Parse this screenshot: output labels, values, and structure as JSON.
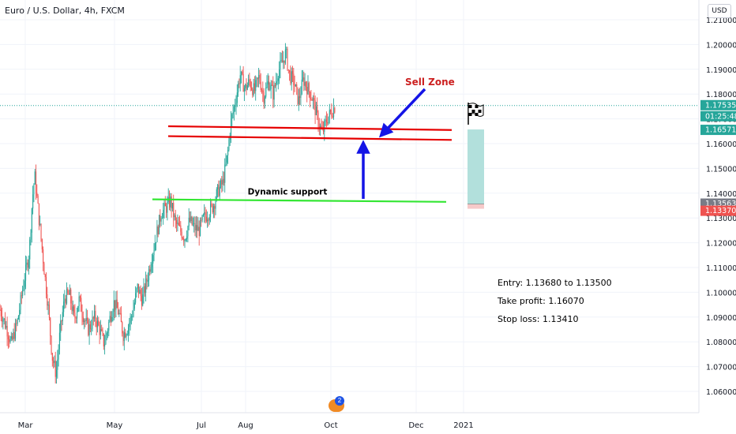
{
  "header": {
    "title": "Euro / U.S. Dollar, 4h, FXCM",
    "currency": "USD"
  },
  "annotations": {
    "sell_zone": "Sell Zone",
    "dynamic_support": "Dynamic support",
    "entry": "Entry: 1.13680 to 1.13500",
    "take_profit": "Take profit: 1.16070",
    "stop_loss": "Stop loss: 1.13410"
  },
  "price_tags": {
    "last": "1.17535",
    "countdown": "01:25:48",
    "target": "1.16571",
    "entry": "1.13563",
    "stop": "1.13370"
  },
  "event_badge": "2",
  "icons": [
    "checkered-flag-icon",
    "arrow-icon",
    "earnings-event-icon"
  ],
  "colors": {
    "up_candle": "#26a69a",
    "down_candle": "#ef5350",
    "resistance_line": "#e60000",
    "support_line": "#33e633",
    "arrow": "#1414e6",
    "sell_zone_text": "#cc1f1f",
    "target_box": "#b2e0dc",
    "last_price_tag": "#26a69a",
    "entry_tag": "#787b86",
    "stop_tag": "#ef5350"
  },
  "chart_data": {
    "type": "candlestick",
    "title": "Euro / U.S. Dollar, 4h, FXCM",
    "ylabel": "USD",
    "ylim": [
      1.055,
      1.215
    ],
    "yticks": [
      "1.21000",
      "1.20000",
      "1.19000",
      "1.18000",
      "1.17000",
      "1.16000",
      "1.15000",
      "1.14000",
      "1.13000",
      "1.12000",
      "1.11000",
      "1.10000",
      "1.09000",
      "1.08000",
      "1.07000",
      "1.06000"
    ],
    "xticks": [
      "Mar",
      "May",
      "Jul",
      "Aug",
      "Oct",
      "Dec",
      "2021"
    ],
    "price_path": [
      [
        0,
        1.093
      ],
      [
        9,
        1.085
      ],
      [
        14,
        1.079
      ],
      [
        22,
        1.088
      ],
      [
        30,
        1.104
      ],
      [
        37,
        1.116
      ],
      [
        41,
        1.138
      ],
      [
        44,
        1.147
      ],
      [
        49,
        1.131
      ],
      [
        55,
        1.112
      ],
      [
        61,
        1.094
      ],
      [
        66,
        1.074
      ],
      [
        71,
        1.067
      ],
      [
        76,
        1.084
      ],
      [
        82,
        1.098
      ],
      [
        88,
        1.099
      ],
      [
        94,
        1.089
      ],
      [
        100,
        1.097
      ],
      [
        106,
        1.09
      ],
      [
        112,
        1.085
      ],
      [
        120,
        1.09
      ],
      [
        126,
        1.085
      ],
      [
        132,
        1.079
      ],
      [
        138,
        1.088
      ],
      [
        144,
        1.096
      ],
      [
        150,
        1.092
      ],
      [
        156,
        1.083
      ],
      [
        162,
        1.086
      ],
      [
        168,
        1.092
      ],
      [
        174,
        1.102
      ],
      [
        180,
        1.097
      ],
      [
        186,
        1.105
      ],
      [
        192,
        1.114
      ],
      [
        198,
        1.123
      ],
      [
        204,
        1.132
      ],
      [
        210,
        1.134
      ],
      [
        216,
        1.137
      ],
      [
        222,
        1.128
      ],
      [
        228,
        1.125
      ],
      [
        234,
        1.122
      ],
      [
        240,
        1.129
      ],
      [
        246,
        1.126
      ],
      [
        252,
        1.125
      ],
      [
        258,
        1.13
      ],
      [
        264,
        1.132
      ],
      [
        270,
        1.135
      ],
      [
        276,
        1.141
      ],
      [
        282,
        1.144
      ],
      [
        288,
        1.155
      ],
      [
        292,
        1.168
      ],
      [
        298,
        1.177
      ],
      [
        304,
        1.188
      ],
      [
        310,
        1.182
      ],
      [
        316,
        1.185
      ],
      [
        322,
        1.181
      ],
      [
        328,
        1.187
      ],
      [
        334,
        1.179
      ],
      [
        340,
        1.185
      ],
      [
        346,
        1.18
      ],
      [
        352,
        1.189
      ],
      [
        358,
        1.193
      ],
      [
        362,
        1.197
      ],
      [
        366,
        1.188
      ],
      [
        372,
        1.185
      ],
      [
        378,
        1.177
      ],
      [
        384,
        1.186
      ],
      [
        390,
        1.182
      ],
      [
        396,
        1.178
      ],
      [
        402,
        1.17
      ],
      [
        408,
        1.164
      ],
      [
        414,
        1.17
      ],
      [
        420,
        1.173
      ],
      [
        425,
        1.1755
      ]
    ],
    "resistance_lines": [
      {
        "x_start": "Jun",
        "x_end": "Nov",
        "y_start": 1.167,
        "y_end": 1.1655
      },
      {
        "x_start": "Jun",
        "x_end": "Nov",
        "y_start": 1.163,
        "y_end": 1.1615
      }
    ],
    "support_line": {
      "label": "Dynamic support",
      "x_start": "Jun",
      "x_end": "Nov",
      "y_start": 1.1375,
      "y_end": 1.1365
    },
    "last_price": 1.17535,
    "target_box": {
      "top": 1.16571,
      "bottom": 1.13563,
      "stop": 1.1337
    },
    "trade": {
      "entry": [
        1.1368,
        1.135
      ],
      "take_profit": 1.1607,
      "stop_loss": 1.1341
    }
  }
}
